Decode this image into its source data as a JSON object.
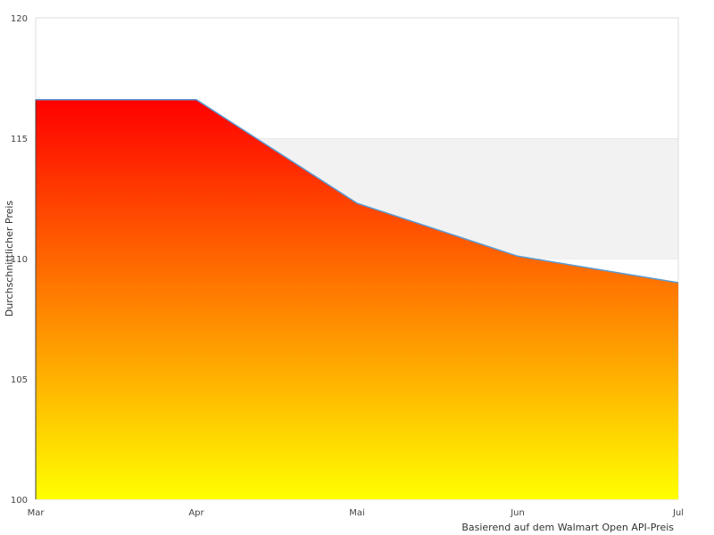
{
  "chart_data": {
    "type": "area",
    "categories": [
      "Mar",
      "Apr",
      "Mai",
      "Jun",
      "Jul"
    ],
    "values": [
      116.6,
      116.6,
      112.3,
      110.1,
      109.0
    ],
    "title": "",
    "xlabel": "Basierend auf dem Walmart Open API-Preis",
    "ylabel": "Durchschnittlicher Preis",
    "ylim": [
      100,
      120
    ],
    "yticks": [
      "100",
      "105",
      "110",
      "115",
      "120"
    ],
    "grid": "alternating horizontal bands",
    "colors": {
      "gradient_top": "#ff0000",
      "gradient_bottom": "#ffff00",
      "line": "#5b9bd5",
      "band": "#f2f2f2"
    }
  }
}
